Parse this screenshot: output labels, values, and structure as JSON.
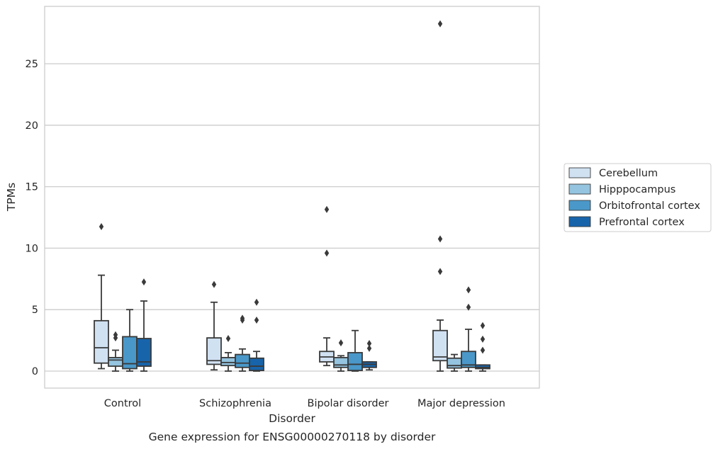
{
  "chart_data": {
    "type": "box",
    "title": "",
    "caption": "Gene expression for ENSG00000270118 by disorder",
    "xlabel": "Disorder",
    "ylabel": "TPMs",
    "ylim": [
      -1.4,
      29.8
    ],
    "yticks": [
      0,
      5,
      10,
      15,
      20,
      25
    ],
    "grid": "horizontal",
    "legend_position": "right",
    "categories": [
      "Control",
      "Schizophrenia",
      "Bipolar disorder",
      "Major depression"
    ],
    "series": [
      {
        "name": "Cerebellum",
        "color": "#d0e1f2",
        "boxes": [
          {
            "whislo": 0.2,
            "q1": 0.65,
            "med": 1.9,
            "q3": 4.1,
            "whishi": 7.8,
            "fliers": [
              11.75
            ]
          },
          {
            "whislo": 0.1,
            "q1": 0.55,
            "med": 0.85,
            "q3": 2.7,
            "whishi": 5.6,
            "fliers": [
              7.05
            ]
          },
          {
            "whislo": 0.45,
            "q1": 0.75,
            "med": 1.15,
            "q3": 1.6,
            "whishi": 2.7,
            "fliers": [
              9.6,
              13.15
            ]
          },
          {
            "whislo": 0.0,
            "q1": 0.85,
            "med": 1.15,
            "q3": 3.3,
            "whishi": 4.15,
            "fliers": [
              8.1,
              10.75,
              28.25
            ]
          }
        ]
      },
      {
        "name": "Hipppocampus",
        "color": "#94c4df",
        "boxes": [
          {
            "whislo": 0.0,
            "q1": 0.4,
            "med": 0.9,
            "q3": 1.1,
            "whishi": 1.7,
            "fliers": [
              2.7,
              2.95
            ]
          },
          {
            "whislo": 0.0,
            "q1": 0.45,
            "med": 0.7,
            "q3": 1.1,
            "whishi": 1.5,
            "fliers": [
              2.65
            ]
          },
          {
            "whislo": 0.0,
            "q1": 0.3,
            "med": 0.5,
            "q3": 1.1,
            "whishi": 1.25,
            "fliers": [
              2.3
            ]
          },
          {
            "whislo": 0.0,
            "q1": 0.25,
            "med": 0.45,
            "q3": 1.05,
            "whishi": 1.35,
            "fliers": []
          }
        ]
      },
      {
        "name": "Orbitofrontal cortex",
        "color": "#4a98c9",
        "boxes": [
          {
            "whislo": 0.0,
            "q1": 0.2,
            "med": 0.6,
            "q3": 2.8,
            "whishi": 5.0,
            "fliers": []
          },
          {
            "whislo": 0.0,
            "q1": 0.3,
            "med": 0.65,
            "q3": 1.35,
            "whishi": 1.8,
            "fliers": [
              4.15,
              4.3
            ]
          },
          {
            "whislo": 0.0,
            "q1": 0.05,
            "med": 0.55,
            "q3": 1.5,
            "whishi": 3.3,
            "fliers": []
          },
          {
            "whislo": 0.0,
            "q1": 0.3,
            "med": 0.5,
            "q3": 1.6,
            "whishi": 3.4,
            "fliers": [
              5.2,
              6.6
            ]
          }
        ]
      },
      {
        "name": "Prefrontal cortex",
        "color": "#1764ab",
        "boxes": [
          {
            "whislo": 0.0,
            "q1": 0.4,
            "med": 0.75,
            "q3": 2.65,
            "whishi": 5.7,
            "fliers": [
              7.25
            ]
          },
          {
            "whislo": 0.0,
            "q1": 0.05,
            "med": 0.4,
            "q3": 1.05,
            "whishi": 1.6,
            "fliers": [
              4.15,
              5.6
            ]
          },
          {
            "whislo": 0.1,
            "q1": 0.3,
            "med": 0.55,
            "q3": 0.75,
            "whishi": 0.75,
            "fliers": [
              1.85,
              2.25
            ]
          },
          {
            "whislo": 0.0,
            "q1": 0.2,
            "med": 0.3,
            "q3": 0.5,
            "whishi": 0.5,
            "fliers": [
              1.7,
              2.6,
              3.7
            ]
          }
        ]
      }
    ]
  }
}
